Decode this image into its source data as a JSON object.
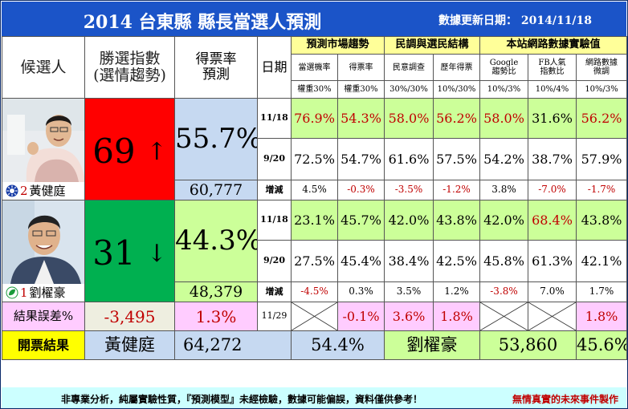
{
  "header": {
    "title": "2014 台東縣 縣長當選人預測",
    "updated_label": "數據更新日期：",
    "updated_date": "2014/11/18"
  },
  "columns": {
    "candidate": "候選人",
    "win_index": [
      "勝選指數",
      "(選情趨勢)"
    ],
    "vote_rate": [
      "得票率",
      "預測"
    ],
    "date": "日期",
    "groups": [
      "預測市場趨勢",
      "民調與選民結構",
      "本站網路數據實驗值"
    ],
    "subs": [
      [
        "當選機率"
      ],
      [
        "得票率"
      ],
      [
        "民意調查"
      ],
      [
        "歷年得票"
      ],
      [
        "Google",
        "趨勢比"
      ],
      [
        "FB人氣",
        "指數比"
      ],
      [
        "網路數據",
        "微調"
      ]
    ],
    "weights": [
      "權重30%",
      "權重30%",
      "30%/30%",
      "10%/30%",
      "10%/3%",
      "10%/4%",
      "10%/3%"
    ]
  },
  "candidates": [
    {
      "name": "黃健庭",
      "number": "2",
      "party_icon": "kmt-sun-icon",
      "index": "69",
      "arrow": "↑",
      "rate": "55.7%",
      "votes": "60,777",
      "rows": [
        {
          "date": "11/18",
          "values": [
            "76.9%",
            "54.3%",
            "58.0%",
            "56.2%",
            "58.0%",
            "31.6%",
            "56.2%"
          ]
        },
        {
          "date": "9/20",
          "values": [
            "72.5%",
            "54.7%",
            "61.6%",
            "57.5%",
            "54.2%",
            "38.7%",
            "57.9%"
          ]
        },
        {
          "date": "增減",
          "values": [
            "4.5%",
            "-0.3%",
            "-3.5%",
            "-1.2%",
            "3.8%",
            "-7.0%",
            "-1.7%"
          ]
        }
      ]
    },
    {
      "name": "劉櫂豪",
      "number": "1",
      "party_icon": "dpp-leaf-icon",
      "index": "31",
      "arrow": "↓",
      "rate": "44.3%",
      "votes": "48,379",
      "rows": [
        {
          "date": "11/18",
          "values": [
            "23.1%",
            "45.7%",
            "42.0%",
            "43.8%",
            "42.0%",
            "68.4%",
            "43.8%"
          ]
        },
        {
          "date": "9/20",
          "values": [
            "27.5%",
            "45.4%",
            "38.4%",
            "42.5%",
            "45.8%",
            "61.3%",
            "42.1%"
          ]
        },
        {
          "date": "增減",
          "values": [
            "-4.5%",
            "0.3%",
            "3.5%",
            "1.2%",
            "-3.8%",
            "7.0%",
            "1.7%"
          ]
        }
      ]
    }
  ],
  "error_row": {
    "label": "結果誤差%",
    "votes_diff": "-3,495",
    "rate_diff": "1.3%",
    "date": "11/29",
    "values": [
      "",
      "-0.1%",
      "3.6%",
      "1.8%",
      "",
      "",
      "1.8%"
    ]
  },
  "result_row": {
    "label": "開票結果",
    "winner": "黃健庭",
    "winner_votes": "64,272",
    "winner_rate": "54.4%",
    "loser": "劉櫂豪",
    "loser_votes": "53,860",
    "loser_rate": "45.6%"
  },
  "footer": {
    "disclaimer": "非專業分析，純屬實驗性質，『預測模型』未經檢驗，數據可能偏誤，資料僅供參考！",
    "credit": "無情真實的未來事件製作"
  },
  "colors": {
    "title_bar": "#1b54c8",
    "win_index_high": "#ff0000",
    "win_index_low": "#00b050",
    "highlight_red": "#c00000"
  }
}
